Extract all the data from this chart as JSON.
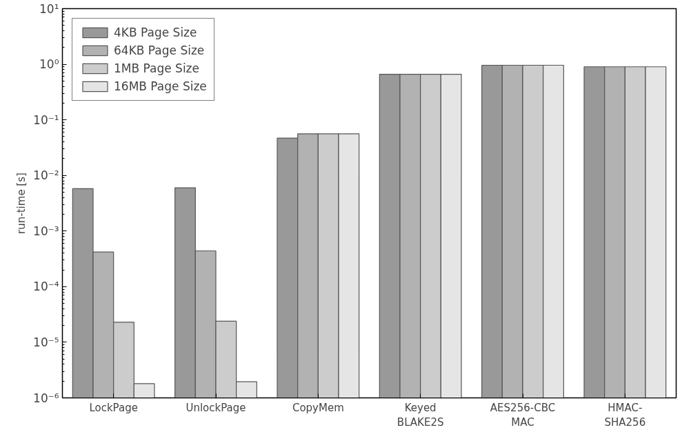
{
  "chart_data": {
    "type": "bar",
    "ylabel": "run-time [s]",
    "log": true,
    "categories": [
      "LockPage",
      "UnlockPage",
      "CopyMem",
      "Keyed\nBLAKE2S",
      "AES256-CBC\nMAC",
      "HMAC-\nSHA256"
    ],
    "series": [
      {
        "name": "4KB Page Size",
        "color": "#999999",
        "values": [
          0.0058,
          0.006,
          0.047,
          0.66,
          0.96,
          0.9
        ]
      },
      {
        "name": "64KB Page Size",
        "color": "#b2b2b2",
        "values": [
          0.00042,
          0.00044,
          0.056,
          0.66,
          0.96,
          0.9
        ]
      },
      {
        "name": "1MB Page Size",
        "color": "#cccccc",
        "values": [
          2.3e-05,
          2.4e-05,
          0.056,
          0.66,
          0.96,
          0.9
        ]
      },
      {
        "name": "16MB Page Size",
        "color": "#e5e5e5",
        "values": [
          1.8e-06,
          1.95e-06,
          0.056,
          0.66,
          0.96,
          0.9
        ]
      }
    ],
    "ylim": [
      1e-06,
      10
    ],
    "yticks": [
      {
        "value": 1e-06,
        "label": "10⁻⁶"
      },
      {
        "value": 1e-05,
        "label": "10⁻⁵"
      },
      {
        "value": 0.0001,
        "label": "10⁻⁴"
      },
      {
        "value": 0.001,
        "label": "10⁻³"
      },
      {
        "value": 0.01,
        "label": "10⁻²"
      },
      {
        "value": 0.1,
        "label": "10⁻¹"
      },
      {
        "value": 1,
        "label": "10⁰"
      },
      {
        "value": 10,
        "label": "10¹"
      }
    ],
    "grid": false,
    "legend": "top left"
  }
}
